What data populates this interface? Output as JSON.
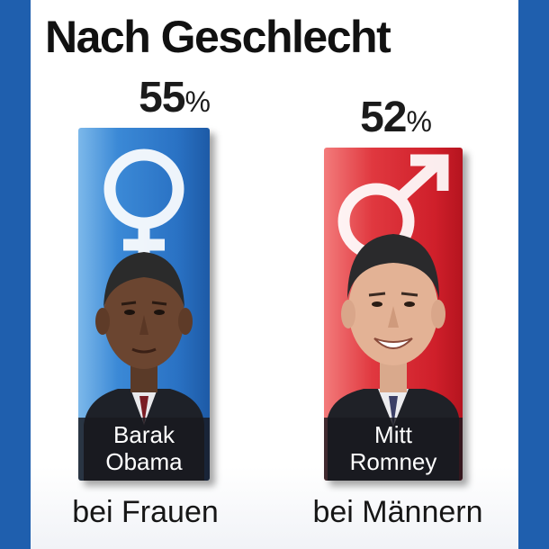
{
  "title": "Nach Geschlecht",
  "chart_data": {
    "type": "bar",
    "categories": [
      "bei Frauen",
      "bei Männern"
    ],
    "values": [
      55,
      52
    ],
    "value_labels": [
      {
        "num": "55",
        "unit": "%"
      },
      {
        "num": "52",
        "unit": "%"
      }
    ],
    "candidates": [
      {
        "line1": "Barak",
        "line2": "Obama"
      },
      {
        "line1": "Mitt",
        "line2": "Romney"
      }
    ],
    "symbols": [
      "female-symbol-icon",
      "male-symbol-icon"
    ],
    "colors": {
      "women": "#2a72c4",
      "men": "#d42a33",
      "frame": "#1f5fae"
    }
  }
}
